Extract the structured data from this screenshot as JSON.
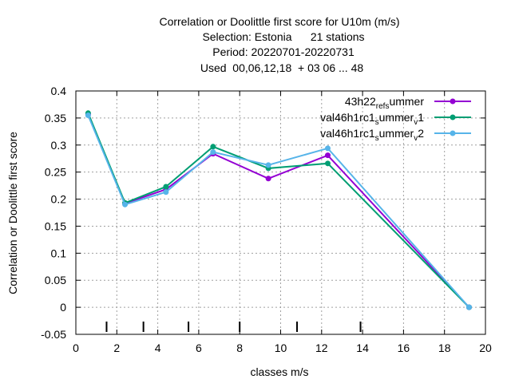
{
  "chart_data": {
    "type": "line",
    "title_lines": [
      "Correlation or Doolittle first score  for U10m (m/s)",
      "Selection: Estonia      21 stations",
      "Period: 20220701-20220731",
      "Used  00,06,12,18  + 03 06 ... 48"
    ],
    "xlabel": "classes m/s",
    "ylabel": "Correlation or Doolittle first score",
    "xlim": [
      0,
      20
    ],
    "ylim": [
      -0.05,
      0.4
    ],
    "x_ticks": [
      "0",
      "2",
      "4",
      "6",
      "8",
      "10",
      "12",
      "14",
      "16",
      "18",
      "20"
    ],
    "y_ticks": [
      "-0.05",
      "0",
      "0.05",
      "0.1",
      "0.15",
      "0.2",
      "0.25",
      "0.3",
      "0.35",
      "0.4"
    ],
    "grid": true,
    "legend_position": "top-right",
    "class_boundaries": [
      1.5,
      3.3,
      5.5,
      8.0,
      10.8,
      13.9
    ],
    "series": [
      {
        "name": "43h22_ref_summer",
        "legend": {
          "parts": [
            [
              "43h22",
              ""
            ],
            [
              "ref",
              "sub"
            ],
            [
              "s",
              "sub"
            ],
            [
              "ummer",
              ""
            ]
          ]
        },
        "color": "#9400d3",
        "x": [
          0.6,
          2.4,
          4.4,
          6.7,
          9.4,
          12.3,
          19.2
        ],
        "y": [
          0.357,
          0.192,
          0.218,
          0.284,
          0.238,
          0.281,
          0.0
        ]
      },
      {
        "name": "val46h1rc1_summer_v1",
        "legend": {
          "parts": [
            [
              "val46h1rc1",
              ""
            ],
            [
              "s",
              "sub"
            ],
            [
              "ummer",
              ""
            ],
            [
              "v",
              "sub"
            ],
            [
              "1",
              ""
            ]
          ]
        },
        "color": "#009e73",
        "x": [
          0.6,
          2.4,
          4.4,
          6.7,
          9.4,
          12.3,
          19.2
        ],
        "y": [
          0.359,
          0.193,
          0.223,
          0.297,
          0.257,
          0.266,
          0.0
        ]
      },
      {
        "name": "val46h1rc1_summer_v2",
        "legend": {
          "parts": [
            [
              "val46h1rc1",
              ""
            ],
            [
              "s",
              "sub"
            ],
            [
              "ummer",
              ""
            ],
            [
              "v",
              "sub"
            ],
            [
              "2",
              ""
            ]
          ]
        },
        "color": "#56b4e9",
        "x": [
          0.6,
          2.4,
          4.4,
          6.7,
          9.4,
          12.3,
          19.2
        ],
        "y": [
          0.355,
          0.19,
          0.213,
          0.287,
          0.263,
          0.294,
          0.0
        ]
      }
    ]
  }
}
